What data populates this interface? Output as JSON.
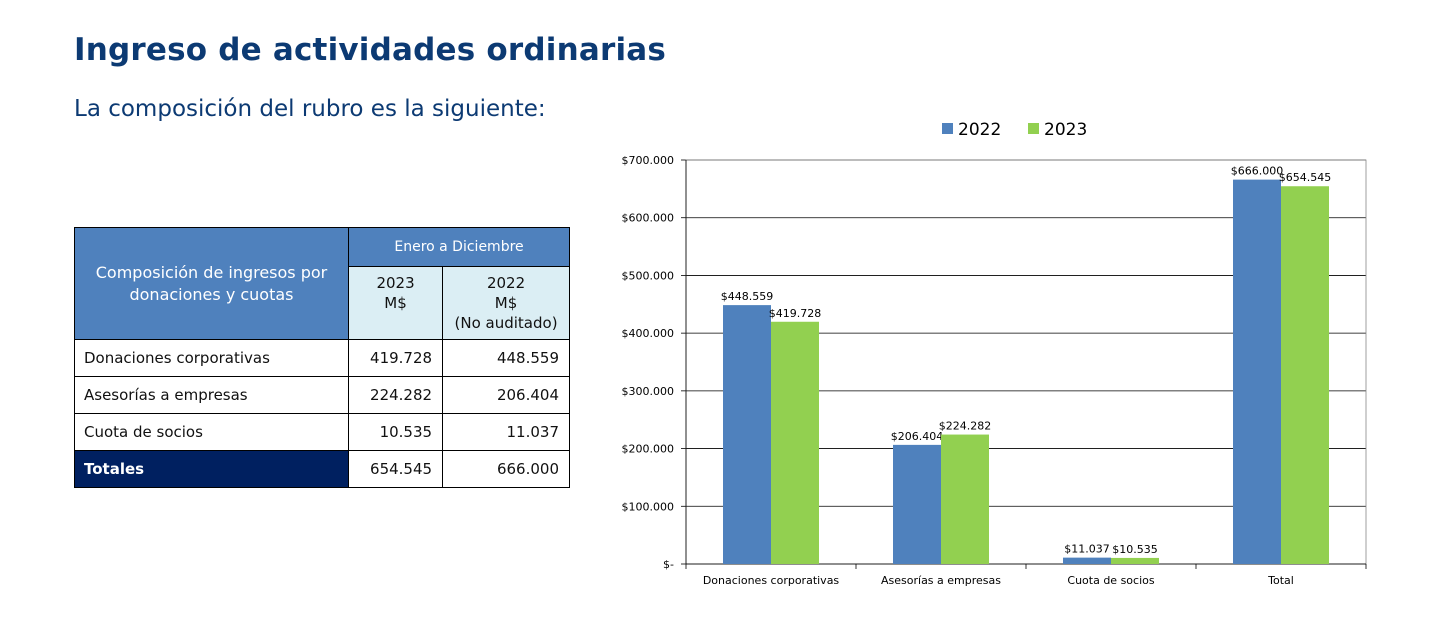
{
  "page": {
    "title": "Ingreso de actividades ordinarias",
    "subtitle": "La composición del rubro es la siguiente:"
  },
  "table": {
    "header_label": "Composición de ingresos por donaciones y cuotas",
    "period": "Enero a Diciembre",
    "col_2023": [
      "2023",
      "M$"
    ],
    "col_2022": [
      "2022",
      "M$",
      "(No auditado)"
    ],
    "rows": [
      {
        "label": "Donaciones corporativas",
        "v2023": "419.728",
        "v2022": "448.559"
      },
      {
        "label": "Asesorías a empresas",
        "v2023": "224.282",
        "v2022": "206.404"
      },
      {
        "label": "Cuota de socios",
        "v2023": "10.535",
        "v2022": "11.037"
      }
    ],
    "total": {
      "label": "Totales",
      "v2023": "654.545",
      "v2022": "666.000"
    }
  },
  "chart_data": {
    "type": "bar",
    "categories": [
      "Donaciones corporativas",
      "Asesorías a empresas",
      "Cuota de socios",
      "Total"
    ],
    "series": [
      {
        "name": "2022",
        "color": "#4f81bd",
        "values": [
          448559,
          206404,
          11037,
          666000
        ],
        "labels": [
          "$448.559",
          "$206.404",
          "$11.037",
          "$666.000"
        ]
      },
      {
        "name": "2023",
        "color": "#92d050",
        "values": [
          419728,
          224282,
          10535,
          654545
        ],
        "labels": [
          "$419.728",
          "$224.282",
          "$10.535",
          "$654.545"
        ]
      }
    ],
    "ylim": [
      0,
      700000
    ],
    "yticks": [
      0,
      100000,
      200000,
      300000,
      400000,
      500000,
      600000,
      700000
    ],
    "ytick_labels": [
      "$-",
      "$100.000",
      "$200.000",
      "$300.000",
      "$400.000",
      "$500.000",
      "$600.000",
      "$700.000"
    ],
    "grid": true,
    "legend": "top-center"
  }
}
